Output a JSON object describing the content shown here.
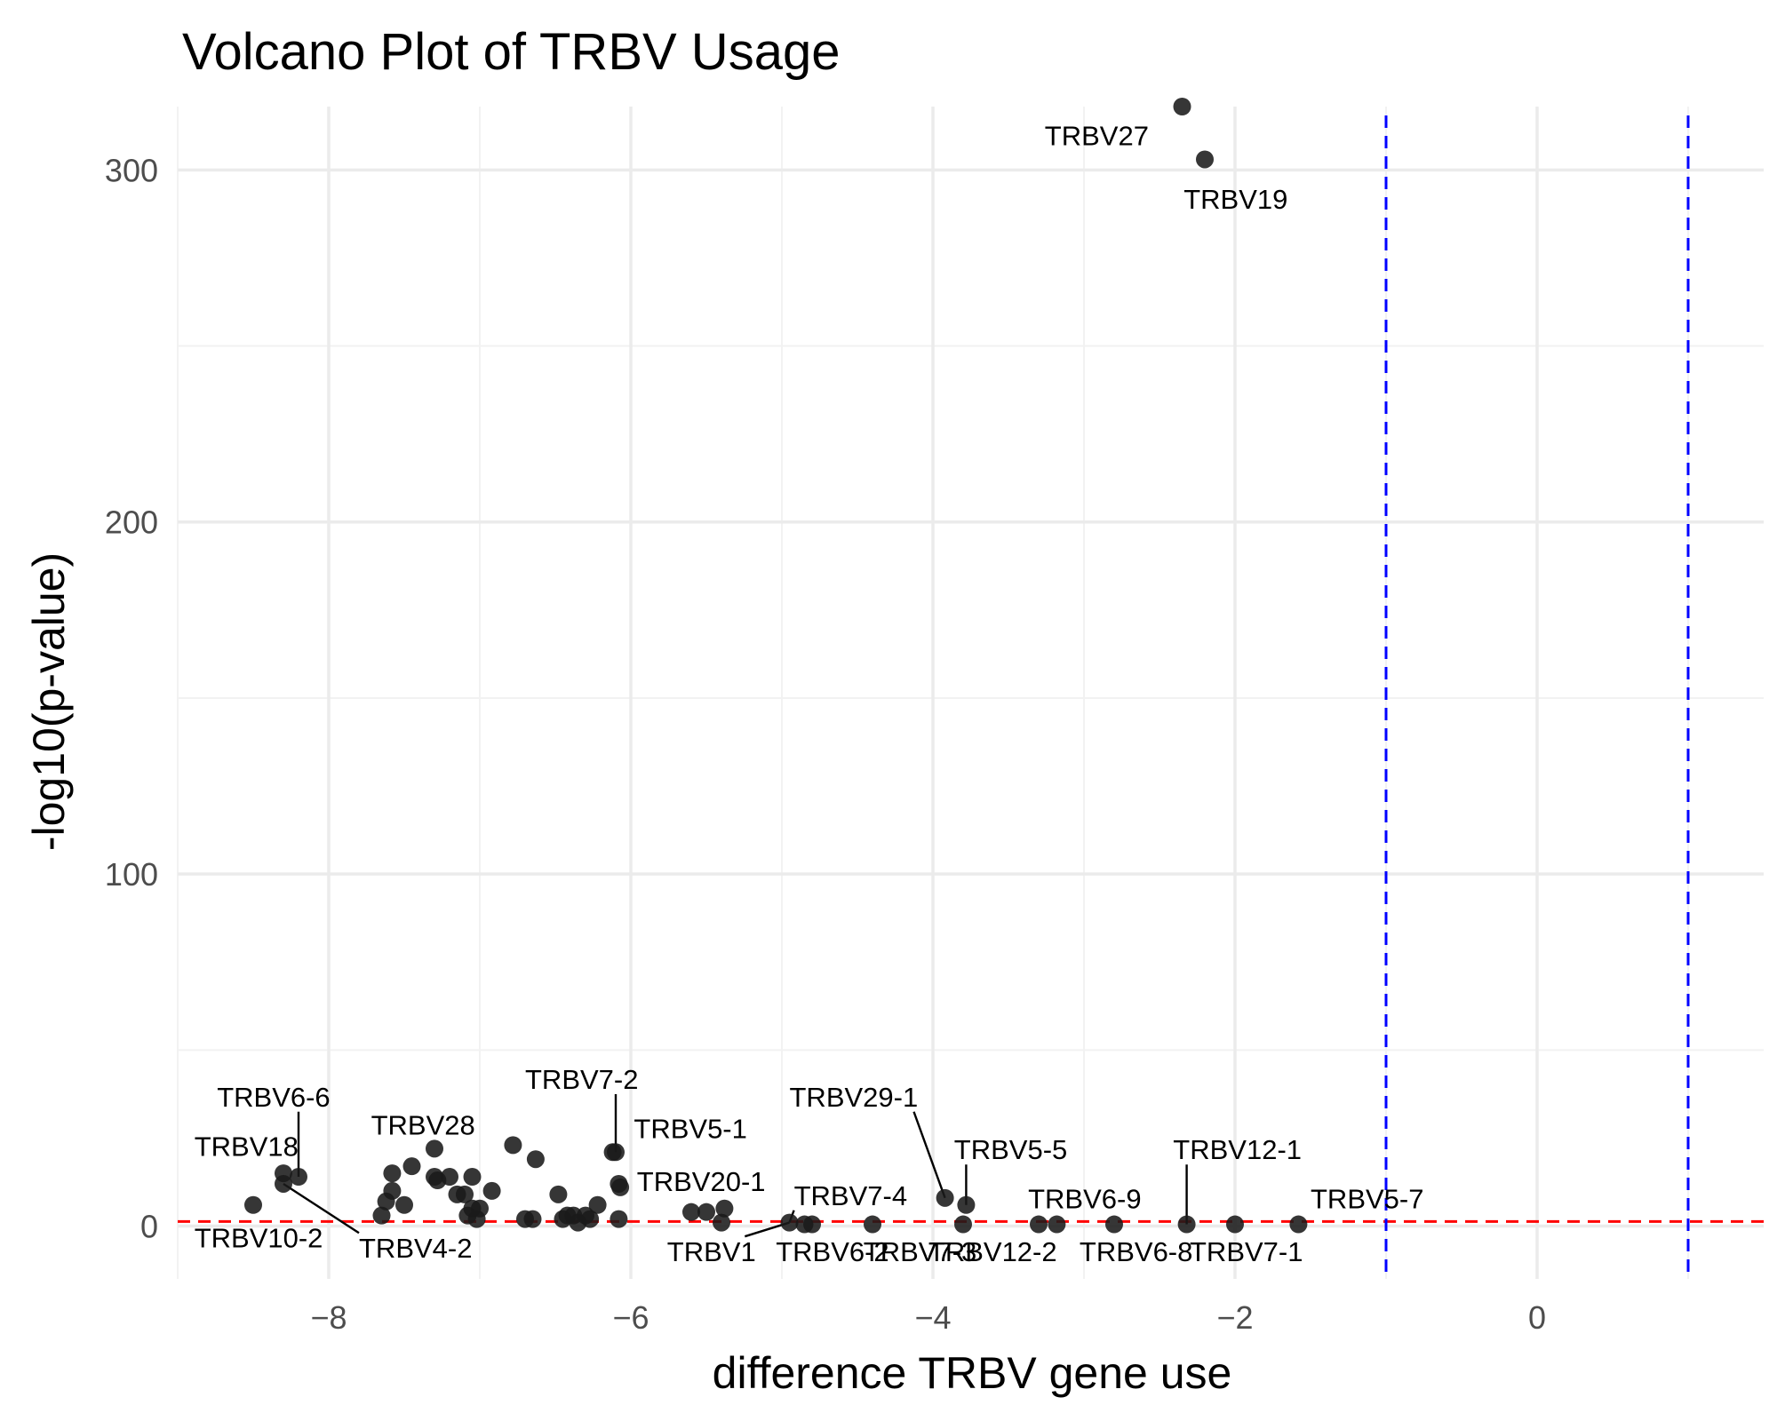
{
  "chart_data": {
    "type": "scatter",
    "title": "Volcano Plot of TRBV Usage",
    "xlabel": "difference TRBV gene use",
    "ylabel": "-log10(p-value)",
    "xlim": [
      -9.0,
      1.5
    ],
    "ylim": [
      -15,
      318
    ],
    "x_ticks": [
      -8,
      -6,
      -4,
      -2,
      0
    ],
    "y_ticks": [
      0,
      100,
      200,
      300
    ],
    "grid": true,
    "reference_lines": [
      {
        "axis": "y",
        "value": 1.3,
        "color": "#ff0000",
        "style": "dashed"
      },
      {
        "axis": "x",
        "value": -1,
        "color": "#0000ff",
        "style": "dashed"
      },
      {
        "axis": "x",
        "value": 1,
        "color": "#0000ff",
        "style": "dashed"
      }
    ],
    "point_color": "#1a1a1a",
    "points": [
      {
        "x": -2.35,
        "y": 318
      },
      {
        "x": -2.2,
        "y": 303
      },
      {
        "x": -8.5,
        "y": 6
      },
      {
        "x": -8.3,
        "y": 15
      },
      {
        "x": -8.2,
        "y": 14
      },
      {
        "x": -8.3,
        "y": 12
      },
      {
        "x": -7.65,
        "y": 3
      },
      {
        "x": -7.62,
        "y": 7
      },
      {
        "x": -7.58,
        "y": 15
      },
      {
        "x": -7.58,
        "y": 10
      },
      {
        "x": -7.5,
        "y": 6
      },
      {
        "x": -7.45,
        "y": 17
      },
      {
        "x": -7.3,
        "y": 22
      },
      {
        "x": -7.3,
        "y": 14
      },
      {
        "x": -7.28,
        "y": 13
      },
      {
        "x": -7.2,
        "y": 14
      },
      {
        "x": -7.15,
        "y": 9
      },
      {
        "x": -7.1,
        "y": 9
      },
      {
        "x": -7.08,
        "y": 3
      },
      {
        "x": -7.05,
        "y": 5
      },
      {
        "x": -7.05,
        "y": 14
      },
      {
        "x": -7.02,
        "y": 2
      },
      {
        "x": -7.0,
        "y": 5
      },
      {
        "x": -6.92,
        "y": 10
      },
      {
        "x": -6.78,
        "y": 23
      },
      {
        "x": -6.7,
        "y": 2
      },
      {
        "x": -6.65,
        "y": 2
      },
      {
        "x": -6.63,
        "y": 19
      },
      {
        "x": -6.48,
        "y": 9
      },
      {
        "x": -6.45,
        "y": 2
      },
      {
        "x": -6.42,
        "y": 3
      },
      {
        "x": -6.38,
        "y": 3
      },
      {
        "x": -6.35,
        "y": 1
      },
      {
        "x": -6.3,
        "y": 3
      },
      {
        "x": -6.27,
        "y": 2
      },
      {
        "x": -6.22,
        "y": 6
      },
      {
        "x": -6.12,
        "y": 21
      },
      {
        "x": -6.1,
        "y": 21
      },
      {
        "x": -6.08,
        "y": 12
      },
      {
        "x": -6.07,
        "y": 11
      },
      {
        "x": -6.08,
        "y": 2
      },
      {
        "x": -5.6,
        "y": 4
      },
      {
        "x": -5.5,
        "y": 4
      },
      {
        "x": -5.4,
        "y": 1
      },
      {
        "x": -5.38,
        "y": 5
      },
      {
        "x": -4.95,
        "y": 1
      },
      {
        "x": -4.85,
        "y": 0.5
      },
      {
        "x": -4.8,
        "y": 0.5
      },
      {
        "x": -4.4,
        "y": 0.5
      },
      {
        "x": -3.92,
        "y": 8
      },
      {
        "x": -3.8,
        "y": 0.5
      },
      {
        "x": -3.78,
        "y": 6
      },
      {
        "x": -3.3,
        "y": 0.5
      },
      {
        "x": -3.18,
        "y": 0.5
      },
      {
        "x": -2.8,
        "y": 0.5
      },
      {
        "x": -2.32,
        "y": 0.5
      },
      {
        "x": -2.0,
        "y": 0.5
      },
      {
        "x": -1.58,
        "y": 0.5
      }
    ],
    "labels": [
      {
        "text": "TRBV27",
        "x": -2.35,
        "y": 318,
        "tx": -3.26,
        "ty": 307,
        "anchor": "start",
        "leader": false
      },
      {
        "text": "TRBV19",
        "x": -2.2,
        "y": 303,
        "tx": -2.34,
        "ty": 289,
        "anchor": "start",
        "leader": false
      },
      {
        "text": "TRBV6-6",
        "x": -8.2,
        "y": 14,
        "tx": -8.74,
        "ty": 34,
        "anchor": "start",
        "leader": true
      },
      {
        "text": "TRBV18",
        "x": -8.3,
        "y": 15,
        "tx": -8.89,
        "ty": 20,
        "anchor": "start",
        "leader": false
      },
      {
        "text": "TRBV10-2",
        "x": -8.3,
        "y": 12,
        "tx": -8.89,
        "ty": -6,
        "anchor": "start",
        "leader": false
      },
      {
        "text": "TRBV4-2",
        "x": -8.3,
        "y": 12,
        "tx": -7.8,
        "ty": -9,
        "anchor": "start",
        "leader": true
      },
      {
        "text": "TRBV28",
        "x": -7.3,
        "y": 22,
        "tx": -7.72,
        "ty": 26,
        "anchor": "start",
        "leader": false
      },
      {
        "text": "TRBV7-2",
        "x": -6.1,
        "y": 21,
        "tx": -6.7,
        "ty": 39,
        "anchor": "start",
        "leader": true
      },
      {
        "text": "TRBV5-1",
        "x": -6.1,
        "y": 21,
        "tx": -5.98,
        "ty": 25,
        "anchor": "start",
        "leader": false
      },
      {
        "text": "TRBV20-1",
        "x": -6.07,
        "y": 11,
        "tx": -5.96,
        "ty": 10,
        "anchor": "start",
        "leader": false
      },
      {
        "text": "TRBV1",
        "x": -4.95,
        "y": 1,
        "tx": -5.76,
        "ty": -10,
        "anchor": "start",
        "leader": true
      },
      {
        "text": "TRBV7-4",
        "x": -4.95,
        "y": 1,
        "tx": -4.92,
        "ty": 6,
        "anchor": "start",
        "leader": true
      },
      {
        "text": "TRBV6-2",
        "x": -4.8,
        "y": 0.5,
        "tx": -5.04,
        "ty": -10,
        "anchor": "start",
        "leader": false
      },
      {
        "text": "TRBV7-3",
        "x": -4.4,
        "y": 0.5,
        "tx": -4.46,
        "ty": -10,
        "anchor": "start",
        "leader": false
      },
      {
        "text": "TRBV29-1",
        "x": -3.92,
        "y": 8,
        "tx": -4.95,
        "ty": 34,
        "anchor": "start",
        "leader": true
      },
      {
        "text": "TRBV5-5",
        "x": -3.78,
        "y": 6,
        "tx": -3.86,
        "ty": 19,
        "anchor": "start",
        "leader": true
      },
      {
        "text": "TRBV12-2",
        "x": -3.8,
        "y": 0.5,
        "tx": -4.03,
        "ty": -10,
        "anchor": "start",
        "leader": false
      },
      {
        "text": "TRBV6-9",
        "x": -3.18,
        "y": 0.5,
        "tx": -3.37,
        "ty": 5,
        "anchor": "start",
        "leader": false
      },
      {
        "text": "TRBV6-8",
        "x": -2.8,
        "y": 0.5,
        "tx": -3.03,
        "ty": -10,
        "anchor": "start",
        "leader": false
      },
      {
        "text": "TRBV12-1",
        "x": -2.32,
        "y": 0.5,
        "tx": -2.41,
        "ty": 19,
        "anchor": "start",
        "leader": true
      },
      {
        "text": "TRBV7-1",
        "x": -2.0,
        "y": 0.5,
        "tx": -2.3,
        "ty": -10,
        "anchor": "start",
        "leader": false
      },
      {
        "text": "TRBV5-7",
        "x": -1.58,
        "y": 0.5,
        "tx": -1.5,
        "ty": 5,
        "anchor": "start",
        "leader": false
      }
    ]
  }
}
